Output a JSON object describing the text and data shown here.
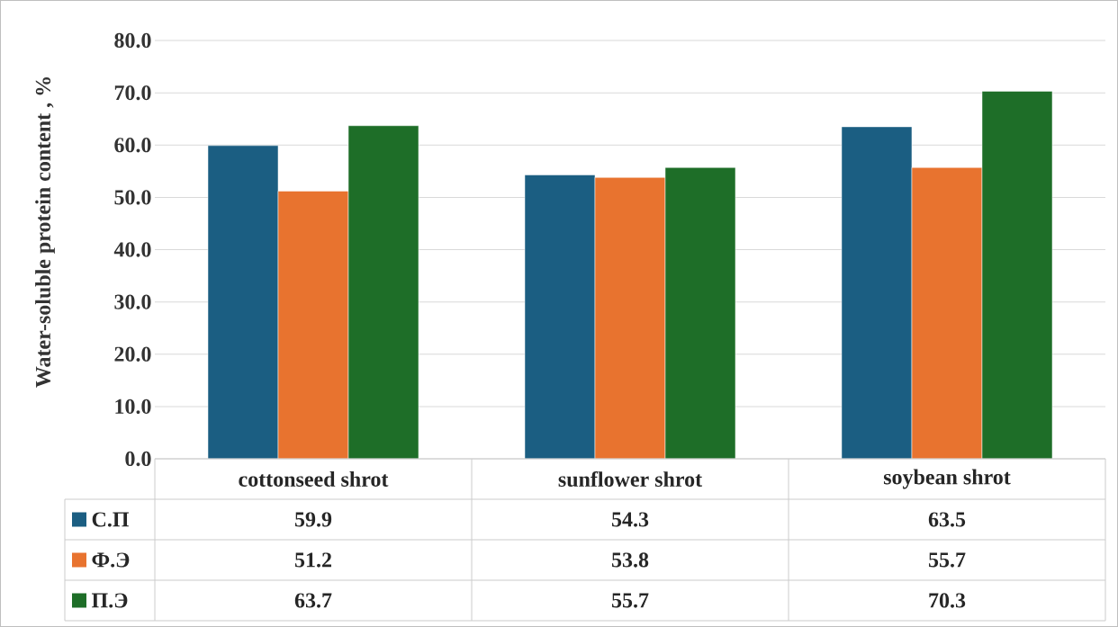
{
  "chart_data": {
    "type": "bar",
    "ylabel": "Water-soluble protein content , %",
    "categories": [
      "cottonseed shrot",
      "sunflower shrot",
      "soybean shrot"
    ],
    "series": [
      {
        "name": "С.П",
        "color": "#1b5e82",
        "values": [
          59.9,
          54.3,
          63.5
        ]
      },
      {
        "name": "Ф.Э",
        "color": "#e8732f",
        "values": [
          51.2,
          53.8,
          55.7
        ]
      },
      {
        "name": "П.Э",
        "color": "#1e6e28",
        "values": [
          63.7,
          55.7,
          70.3
        ]
      }
    ],
    "ylim": [
      0,
      80
    ],
    "yticks": [
      {
        "value": 0,
        "label": "0.0"
      },
      {
        "value": 10,
        "label": "10.0"
      },
      {
        "value": 20,
        "label": "20.0"
      },
      {
        "value": 30,
        "label": "30.0"
      },
      {
        "value": 40,
        "label": "40.0"
      },
      {
        "value": 50,
        "label": "50.0"
      },
      {
        "value": 60,
        "label": "60.0"
      },
      {
        "value": 70,
        "label": "70.0"
      },
      {
        "value": 80,
        "label": "80.0"
      }
    ],
    "grid": "y",
    "legend": "bottom",
    "data_labels": true
  }
}
